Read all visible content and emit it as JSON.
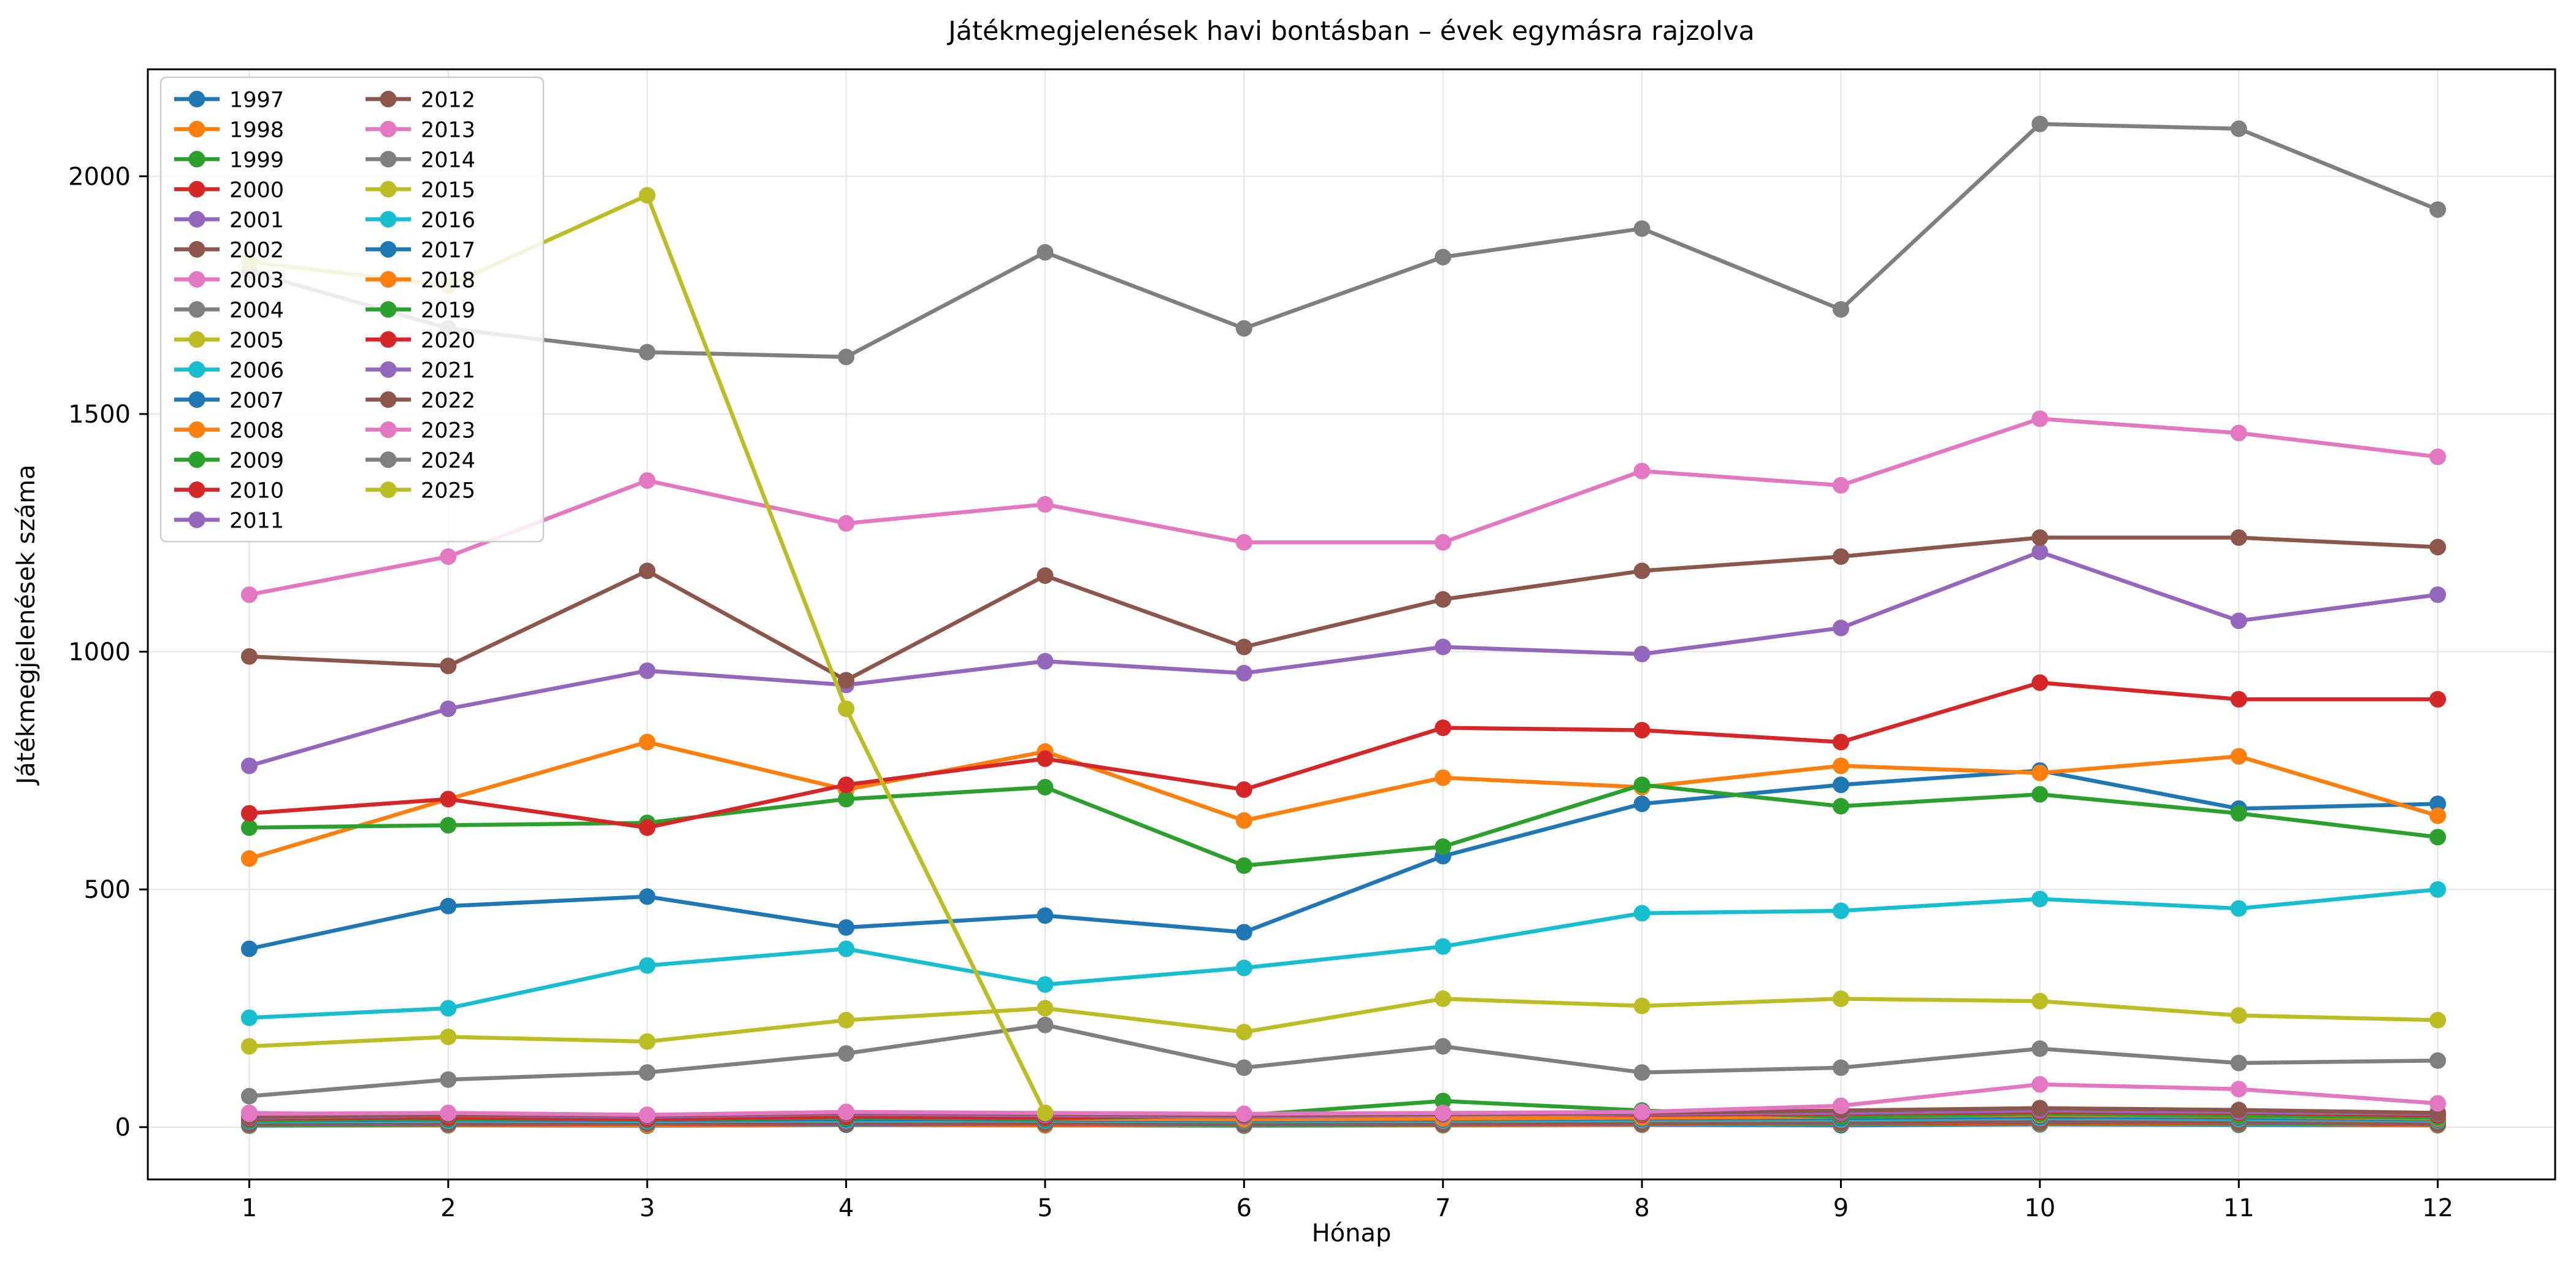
{
  "chart_data": {
    "type": "line",
    "title": "Játékmegjelenések havi bontásban – évek egymásra rajzolva",
    "xlabel": "Hónap",
    "ylabel": "Játékmegjelenések száma",
    "x": [
      1,
      2,
      3,
      4,
      5,
      6,
      7,
      8,
      9,
      10,
      11,
      12
    ],
    "xticks": [
      1,
      2,
      3,
      4,
      5,
      6,
      7,
      8,
      9,
      10,
      11,
      12
    ],
    "yticks": [
      0,
      500,
      1000,
      1500,
      2000
    ],
    "xlim": [
      0.49,
      12.59
    ],
    "ylim": [
      -110,
      2225
    ],
    "grid": true,
    "legend_position": "upper-left",
    "legend_columns": 2,
    "legend_rows_per_column": 15,
    "series": [
      {
        "name": "1997",
        "color": "#1f77b4",
        "values": [
          3,
          4,
          3,
          5,
          4,
          3,
          4,
          5,
          4,
          6,
          5,
          4
        ]
      },
      {
        "name": "1998",
        "color": "#ff7f0e",
        "values": [
          4,
          5,
          4,
          6,
          5,
          4,
          5,
          6,
          7,
          8,
          7,
          5
        ]
      },
      {
        "name": "1999",
        "color": "#2ca02c",
        "values": [
          5,
          6,
          7,
          6,
          7,
          5,
          6,
          7,
          8,
          9,
          8,
          6
        ]
      },
      {
        "name": "2000",
        "color": "#d62728",
        "values": [
          6,
          7,
          8,
          7,
          8,
          6,
          7,
          8,
          9,
          11,
          10,
          7
        ]
      },
      {
        "name": "2001",
        "color": "#9467bd",
        "values": [
          7,
          8,
          9,
          8,
          9,
          7,
          8,
          9,
          10,
          13,
          11,
          8
        ]
      },
      {
        "name": "2002",
        "color": "#8c564b",
        "values": [
          8,
          9,
          10,
          9,
          10,
          8,
          9,
          10,
          11,
          14,
          12,
          9
        ]
      },
      {
        "name": "2003",
        "color": "#e377c2",
        "values": [
          30,
          25,
          20,
          18,
          16,
          14,
          15,
          16,
          18,
          22,
          20,
          15
        ]
      },
      {
        "name": "2004",
        "color": "#7f7f7f",
        "values": [
          12,
          13,
          14,
          13,
          14,
          12,
          13,
          14,
          15,
          18,
          16,
          13
        ]
      },
      {
        "name": "2005",
        "color": "#bcbd22",
        "values": [
          15,
          17,
          16,
          18,
          17,
          15,
          16,
          18,
          19,
          22,
          20,
          17
        ]
      },
      {
        "name": "2006",
        "color": "#17becf",
        "values": [
          12,
          14,
          13,
          15,
          14,
          13,
          14,
          16,
          17,
          20,
          18,
          15
        ]
      },
      {
        "name": "2007",
        "color": "#1f77b4",
        "values": [
          14,
          16,
          15,
          17,
          16,
          14,
          16,
          18,
          19,
          22,
          20,
          16
        ]
      },
      {
        "name": "2008",
        "color": "#ff7f0e",
        "values": [
          16,
          18,
          17,
          20,
          18,
          16,
          18,
          20,
          22,
          26,
          23,
          18
        ]
      },
      {
        "name": "2009",
        "color": "#2ca02c",
        "values": [
          15,
          18,
          16,
          20,
          18,
          25,
          55,
          35,
          22,
          28,
          24,
          20
        ]
      },
      {
        "name": "2010",
        "color": "#d62728",
        "values": [
          18,
          20,
          17,
          22,
          20,
          24,
          30,
          26,
          28,
          32,
          30,
          25
        ]
      },
      {
        "name": "2011",
        "color": "#9467bd",
        "values": [
          20,
          25,
          22,
          28,
          25,
          22,
          26,
          28,
          30,
          35,
          32,
          28
        ]
      },
      {
        "name": "2012",
        "color": "#8c564b",
        "values": [
          22,
          26,
          24,
          30,
          28,
          25,
          28,
          30,
          35,
          40,
          36,
          30
        ]
      },
      {
        "name": "2013",
        "color": "#e377c2",
        "values": [
          28,
          30,
          26,
          32,
          30,
          28,
          30,
          32,
          45,
          90,
          80,
          50
        ]
      },
      {
        "name": "2014",
        "color": "#7f7f7f",
        "values": [
          65,
          100,
          115,
          155,
          215,
          125,
          170,
          115,
          125,
          165,
          135,
          140
        ]
      },
      {
        "name": "2015",
        "color": "#bcbd22",
        "values": [
          170,
          190,
          180,
          225,
          250,
          200,
          270,
          255,
          270,
          265,
          235,
          225
        ]
      },
      {
        "name": "2016",
        "color": "#17becf",
        "values": [
          230,
          250,
          340,
          375,
          300,
          335,
          380,
          450,
          455,
          480,
          460,
          500
        ]
      },
      {
        "name": "2017",
        "color": "#1f77b4",
        "values": [
          375,
          465,
          485,
          420,
          445,
          410,
          570,
          680,
          720,
          750,
          670,
          680
        ]
      },
      {
        "name": "2018",
        "color": "#ff7f0e",
        "values": [
          565,
          690,
          810,
          710,
          790,
          645,
          735,
          715,
          760,
          745,
          780,
          655
        ]
      },
      {
        "name": "2019",
        "color": "#2ca02c",
        "values": [
          630,
          635,
          640,
          690,
          715,
          550,
          590,
          720,
          675,
          700,
          660,
          610
        ]
      },
      {
        "name": "2020",
        "color": "#d62728",
        "values": [
          660,
          690,
          630,
          720,
          775,
          710,
          840,
          835,
          810,
          935,
          900,
          900
        ]
      },
      {
        "name": "2021",
        "color": "#9467bd",
        "values": [
          760,
          880,
          960,
          930,
          980,
          955,
          1010,
          995,
          1050,
          1210,
          1065,
          1120
        ]
      },
      {
        "name": "2022",
        "color": "#8c564b",
        "values": [
          990,
          970,
          1170,
          940,
          1160,
          1010,
          1110,
          1170,
          1200,
          1240,
          1240,
          1220
        ]
      },
      {
        "name": "2023",
        "color": "#e377c2",
        "values": [
          1120,
          1200,
          1360,
          1270,
          1310,
          1230,
          1230,
          1380,
          1350,
          1490,
          1460,
          1410
        ]
      },
      {
        "name": "2024",
        "color": "#7f7f7f",
        "values": [
          1800,
          1680,
          1630,
          1620,
          1840,
          1680,
          1830,
          1890,
          1720,
          2110,
          2100,
          1930
        ]
      },
      {
        "name": "2025",
        "color": "#bcbd22",
        "values": [
          1820,
          1770,
          1960,
          880,
          30
        ]
      }
    ]
  }
}
